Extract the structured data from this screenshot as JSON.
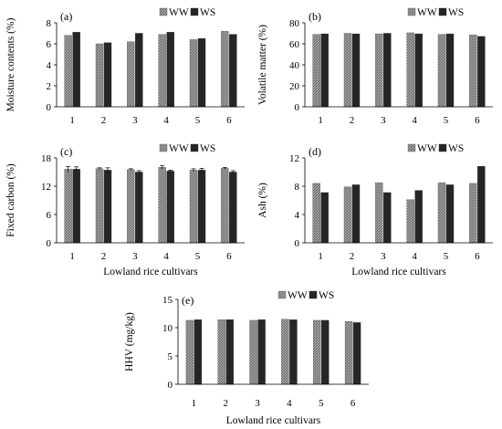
{
  "colors": {
    "ww_fill": "#9a9a9a",
    "ww_hatch": "#5a5a5a",
    "ws_fill": "#262626",
    "axis": "#000000"
  },
  "chart_data": [
    {
      "type": "bar",
      "panel_label": "(a)",
      "categories": [
        "1",
        "2",
        "3",
        "4",
        "5",
        "6"
      ],
      "xlabel": "",
      "ylabel": "Moisture contents (%)",
      "ylim": [
        0,
        8
      ],
      "yticks": [
        0,
        2,
        4,
        6,
        8
      ],
      "legend": "top-right",
      "series": [
        {
          "name": "WW",
          "values": [
            6.8,
            6.0,
            6.2,
            6.9,
            6.4,
            7.2
          ]
        },
        {
          "name": "WS",
          "values": [
            7.1,
            6.1,
            7.0,
            7.1,
            6.5,
            6.9
          ]
        }
      ]
    },
    {
      "type": "bar",
      "panel_label": "(b)",
      "categories": [
        "1",
        "2",
        "3",
        "4",
        "5",
        "6"
      ],
      "xlabel": "",
      "ylabel": "Volatile matter (%)",
      "ylim": [
        0,
        80
      ],
      "yticks": [
        0,
        20,
        40,
        60,
        80
      ],
      "legend": "top-right",
      "series": [
        {
          "name": "WW",
          "values": [
            69,
            70,
            69.5,
            70.5,
            69,
            68.5
          ]
        },
        {
          "name": "WS",
          "values": [
            69.5,
            69.5,
            70,
            69.5,
            69.5,
            67
          ]
        }
      ]
    },
    {
      "type": "bar",
      "panel_label": "(c)",
      "categories": [
        "1",
        "2",
        "3",
        "4",
        "5",
        "6"
      ],
      "xlabel": "Lowland rice cultivars",
      "ylabel": "Fixed carbon (%)",
      "ylim": [
        0,
        18
      ],
      "yticks": [
        0,
        6,
        12,
        18
      ],
      "legend": "top-right",
      "series": [
        {
          "name": "WW",
          "values": [
            15.6,
            15.7,
            15.5,
            16.0,
            15.4,
            15.8
          ],
          "errors": [
            0.6,
            0.2,
            0.2,
            0.4,
            0.3,
            0.2
          ]
        },
        {
          "name": "WS",
          "values": [
            15.6,
            15.4,
            15.0,
            15.2,
            15.4,
            15.0
          ],
          "errors": [
            0.5,
            0.5,
            0.3,
            0.2,
            0.4,
            0.3
          ]
        }
      ]
    },
    {
      "type": "bar",
      "panel_label": "(d)",
      "categories": [
        "1",
        "2",
        "3",
        "4",
        "5",
        "6"
      ],
      "xlabel": "Lowland rice cultivars",
      "ylabel": "Ash (%)",
      "ylim": [
        0,
        12
      ],
      "yticks": [
        0,
        4,
        8,
        12
      ],
      "legend": "top-right",
      "series": [
        {
          "name": "WW",
          "values": [
            8.4,
            7.9,
            8.5,
            6.1,
            8.5,
            8.4
          ]
        },
        {
          "name": "WS",
          "values": [
            7.1,
            8.2,
            7.1,
            7.4,
            8.2,
            10.8
          ]
        }
      ]
    },
    {
      "type": "bar",
      "panel_label": "(e)",
      "categories": [
        "1",
        "2",
        "3",
        "4",
        "5",
        "6"
      ],
      "xlabel": "Lowland rice cultivars",
      "ylabel": "HHV (mg/kg)",
      "ylim": [
        0,
        15
      ],
      "yticks": [
        0,
        5,
        10,
        15
      ],
      "legend": "top-right",
      "series": [
        {
          "name": "WW",
          "values": [
            11.3,
            11.4,
            11.3,
            11.5,
            11.3,
            11.1
          ]
        },
        {
          "name": "WS",
          "values": [
            11.4,
            11.4,
            11.4,
            11.4,
            11.3,
            10.9
          ]
        }
      ]
    }
  ]
}
